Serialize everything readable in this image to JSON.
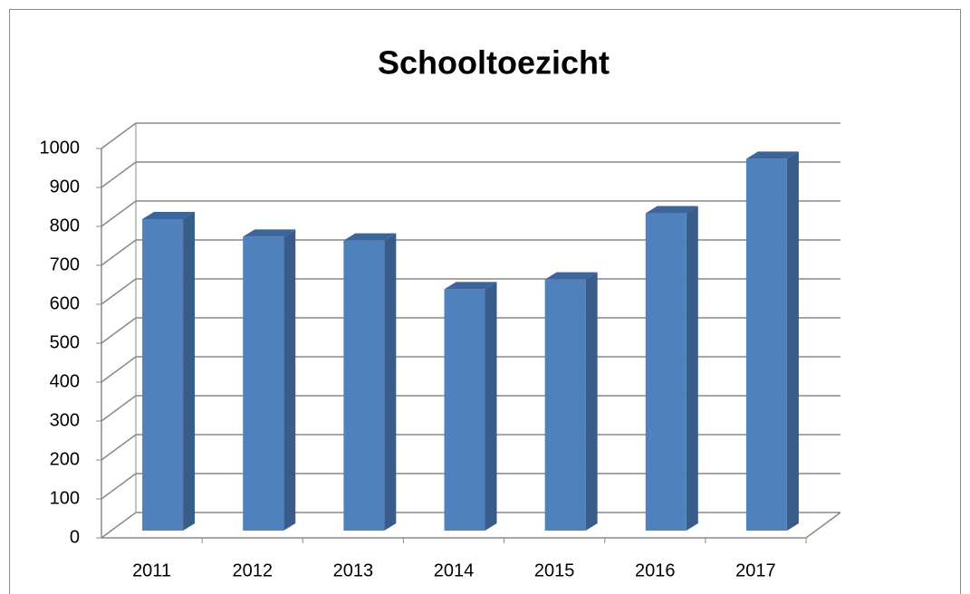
{
  "chart_data": {
    "type": "bar3d",
    "title": "Schooltoezicht",
    "categories": [
      "2011",
      "2012",
      "2013",
      "2014",
      "2015",
      "2016",
      "2017"
    ],
    "values": [
      800,
      755,
      745,
      620,
      645,
      815,
      955
    ],
    "color": "#4f81bd",
    "ylim": [
      0,
      1000
    ],
    "yticks": [
      0,
      100,
      200,
      300,
      400,
      500,
      600,
      700,
      800,
      900,
      1000
    ],
    "grid": true
  }
}
